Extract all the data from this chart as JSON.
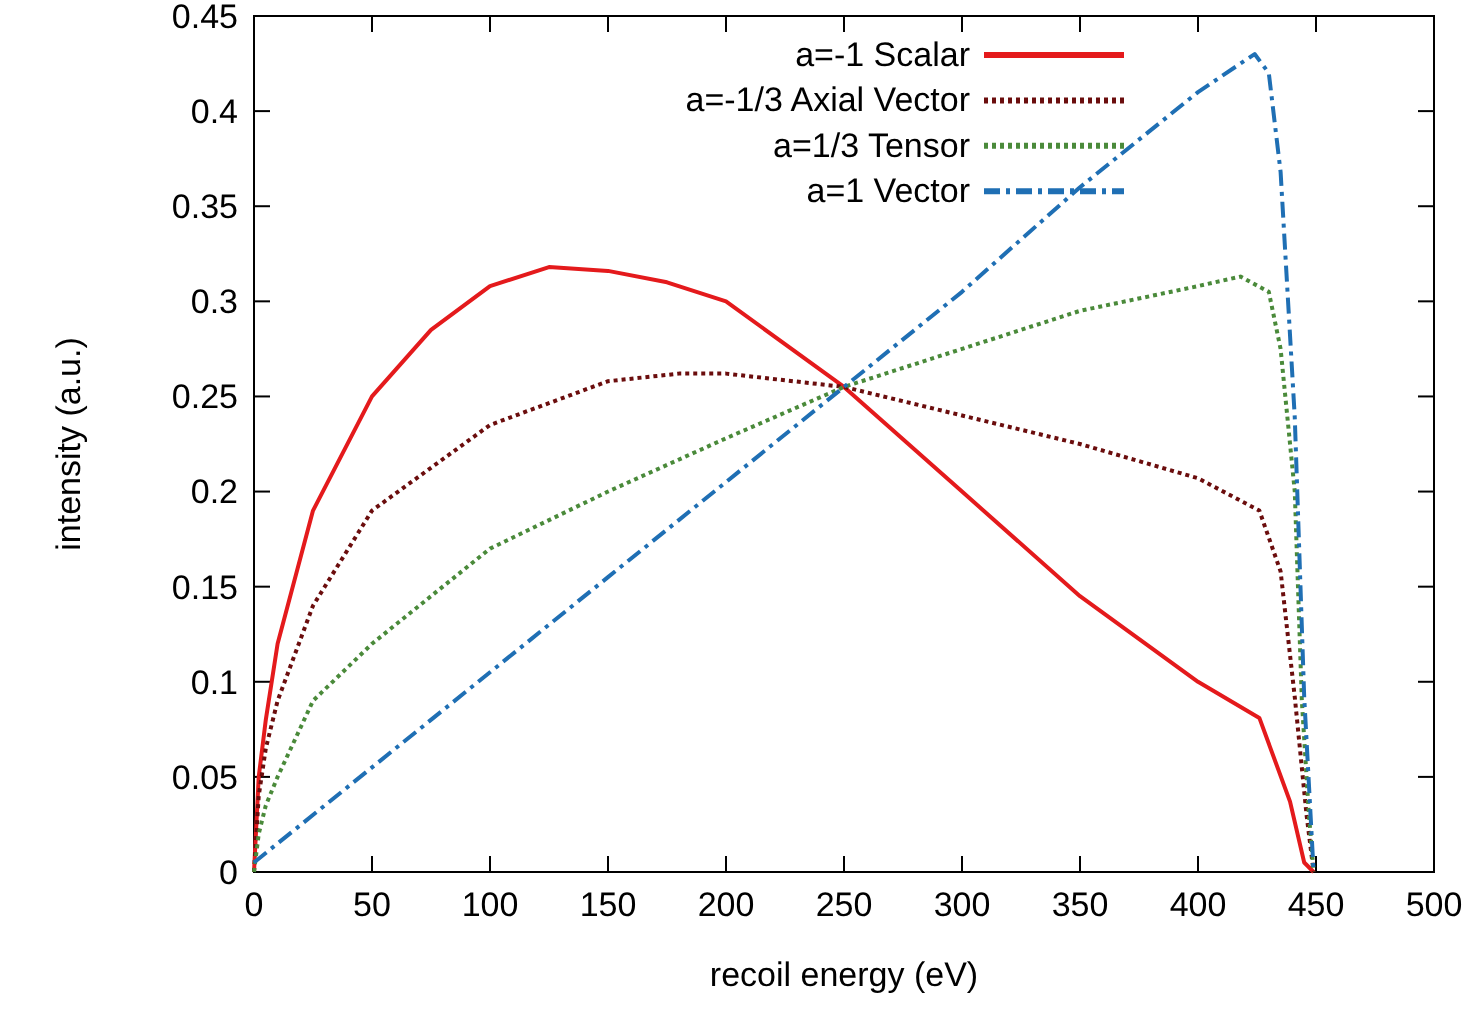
{
  "chart_data": {
    "type": "line",
    "xlabel": "recoil energy (eV)",
    "ylabel": "intensity (a.u.)",
    "xlim": [
      0,
      500
    ],
    "ylim": [
      0,
      0.45
    ],
    "xticks": [
      0,
      50,
      100,
      150,
      200,
      250,
      300,
      350,
      400,
      450,
      500
    ],
    "yticks": [
      0,
      0.05,
      0.1,
      0.15,
      0.2,
      0.25,
      0.3,
      0.35,
      0.4,
      0.45
    ],
    "grid": false,
    "legend": "top right",
    "series": [
      {
        "name": "a=-1 Scalar",
        "color": "#e41a1c",
        "line_style": "solid",
        "x": [
          0,
          2,
          5,
          10,
          25,
          50,
          75,
          100,
          125,
          150,
          175,
          200,
          250,
          300,
          350,
          400,
          426,
          439,
          445,
          449
        ],
        "values": [
          0,
          0.05,
          0.08,
          0.12,
          0.19,
          0.25,
          0.285,
          0.308,
          0.318,
          0.316,
          0.31,
          0.3,
          0.255,
          0.2,
          0.145,
          0.1,
          0.081,
          0.037,
          0.005,
          0
        ]
      },
      {
        "name": "a=-1/3 Axial Vector",
        "color": "#6b0d0d",
        "line_style": "dotted",
        "x": [
          0,
          2,
          5,
          10,
          25,
          50,
          100,
          150,
          180,
          200,
          250,
          300,
          350,
          400,
          426,
          435,
          441,
          446,
          449
        ],
        "values": [
          0,
          0.04,
          0.065,
          0.09,
          0.14,
          0.19,
          0.235,
          0.258,
          0.262,
          0.262,
          0.255,
          0.24,
          0.225,
          0.207,
          0.19,
          0.158,
          0.092,
          0.03,
          0
        ]
      },
      {
        "name": "a=1/3 Tensor",
        "color": "#4a8a3a",
        "line_style": "dotted",
        "x": [
          0,
          2,
          5,
          10,
          25,
          50,
          100,
          150,
          200,
          250,
          300,
          350,
          400,
          418,
          430,
          435,
          441,
          444,
          447,
          449
        ],
        "values": [
          0,
          0.02,
          0.035,
          0.05,
          0.09,
          0.12,
          0.17,
          0.2,
          0.228,
          0.255,
          0.275,
          0.295,
          0.308,
          0.313,
          0.305,
          0.275,
          0.2,
          0.09,
          0.03,
          0
        ]
      },
      {
        "name": "a=1 Vector",
        "color": "#1f6fb4",
        "line_style": "dashdot",
        "x": [
          0,
          50,
          100,
          150,
          200,
          250,
          300,
          350,
          400,
          424,
          430,
          435,
          441,
          445,
          449
        ],
        "values": [
          0.005,
          0.055,
          0.105,
          0.155,
          0.205,
          0.255,
          0.305,
          0.36,
          0.41,
          0.43,
          0.42,
          0.368,
          0.239,
          0.092,
          0
        ]
      }
    ]
  }
}
